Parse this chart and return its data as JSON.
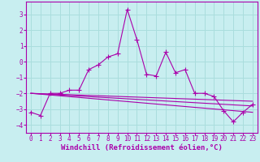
{
  "xlabel": "Windchill (Refroidissement éolien,°C)",
  "ylabel": "",
  "bg_color": "#c8eef0",
  "grid_color": "#aadddd",
  "line_color": "#aa00aa",
  "x_values": [
    0,
    1,
    2,
    3,
    4,
    5,
    6,
    7,
    8,
    9,
    10,
    11,
    12,
    13,
    14,
    15,
    16,
    17,
    18,
    19,
    20,
    21,
    22,
    23
  ],
  "line1": [
    -3.2,
    -3.4,
    -2.0,
    -2.0,
    -1.8,
    -1.8,
    -0.5,
    -0.2,
    0.3,
    0.5,
    3.3,
    1.4,
    -0.8,
    -0.9,
    0.6,
    -0.7,
    -0.5,
    -2.0,
    -2.0,
    -2.2,
    -3.1,
    -3.8,
    -3.2,
    -2.7
  ],
  "line2_x": [
    0,
    23
  ],
  "line2": [
    -2.0,
    -2.5
  ],
  "line3_x": [
    0,
    23
  ],
  "line3": [
    -2.0,
    -2.8
  ],
  "line4_x": [
    0,
    23
  ],
  "line4": [
    -2.0,
    -3.2
  ],
  "ylim": [
    -4.5,
    3.8
  ],
  "xlim": [
    -0.5,
    23.5
  ],
  "yticks": [
    -4,
    -3,
    -2,
    -1,
    0,
    1,
    2,
    3
  ],
  "xticks": [
    0,
    1,
    2,
    3,
    4,
    5,
    6,
    7,
    8,
    9,
    10,
    11,
    12,
    13,
    14,
    15,
    16,
    17,
    18,
    19,
    20,
    21,
    22,
    23
  ],
  "marker": "+",
  "markersize": 4,
  "linewidth": 0.8,
  "xlabel_fontsize": 6.5,
  "tick_fontsize": 5.5
}
